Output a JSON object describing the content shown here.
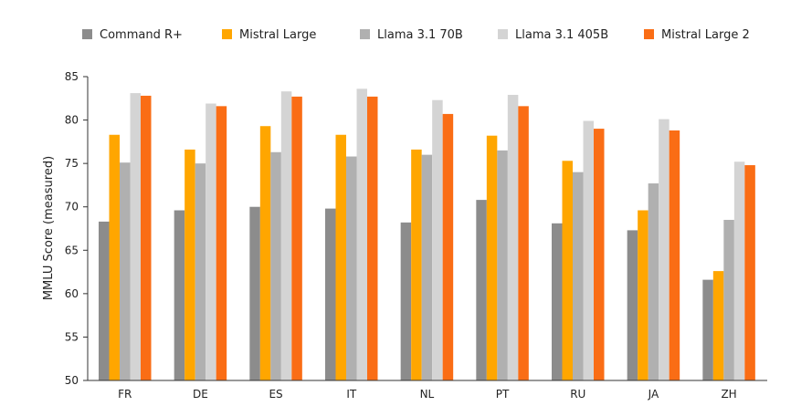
{
  "chart_data": {
    "type": "bar",
    "title": "",
    "xlabel": "",
    "ylabel": "MMLU Score (measured)",
    "ylim": [
      50,
      85
    ],
    "yticks": [
      50,
      55,
      60,
      65,
      70,
      75,
      80,
      85
    ],
    "grid": false,
    "legend_position": "top",
    "categories": [
      "FR",
      "DE",
      "ES",
      "IT",
      "NL",
      "PT",
      "RU",
      "JA",
      "ZH"
    ],
    "series": [
      {
        "name": "Command R+",
        "color": "#8c8c8c",
        "values": [
          68.3,
          69.6,
          70.0,
          69.8,
          68.2,
          70.8,
          68.1,
          67.3,
          61.6
        ]
      },
      {
        "name": "Mistral Large",
        "color": "#ffa600",
        "values": [
          78.3,
          76.6,
          79.3,
          78.3,
          76.6,
          78.2,
          75.3,
          69.6,
          62.6
        ]
      },
      {
        "name": "Llama 3.1 70B",
        "color": "#b0b0b0",
        "values": [
          75.1,
          75.0,
          76.3,
          75.8,
          76.0,
          76.5,
          74.0,
          72.7,
          68.5
        ]
      },
      {
        "name": "Llama 3.1 405B",
        "color": "#d4d4d4",
        "values": [
          83.1,
          81.9,
          83.3,
          83.6,
          82.3,
          82.9,
          79.9,
          80.1,
          75.2
        ]
      },
      {
        "name": "Mistral Large 2",
        "color": "#fa6d15",
        "values": [
          82.8,
          81.6,
          82.7,
          82.7,
          80.7,
          81.6,
          79.0,
          78.8,
          74.8
        ]
      }
    ]
  }
}
